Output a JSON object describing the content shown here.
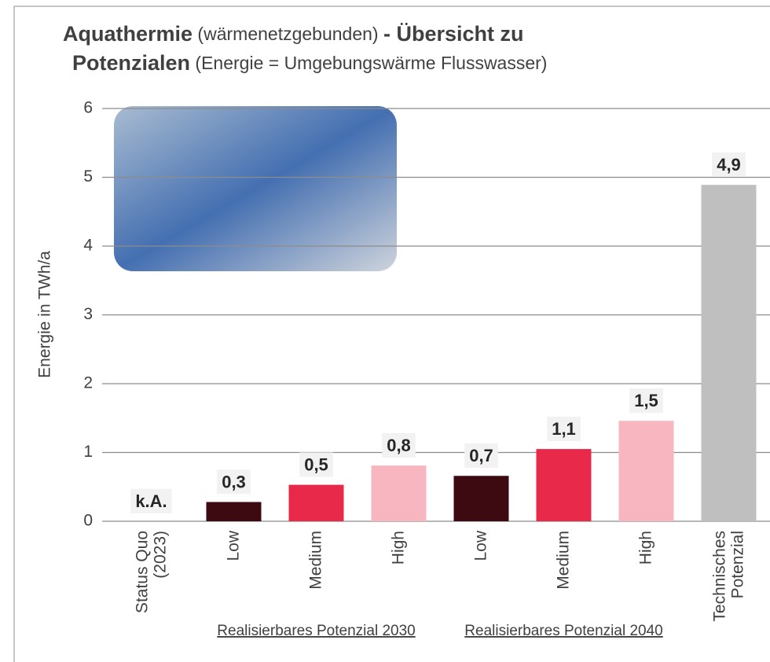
{
  "chart_data": {
    "type": "bar",
    "title_lines": [
      [
        {
          "text": "Aquathermie",
          "bold": true
        },
        {
          "text": " (wärmenetzgebunden) ",
          "bold": false
        },
        {
          "text": "- Übersicht zu",
          "bold": true
        }
      ],
      [
        {
          "text": "Potenzialen",
          "bold": true
        },
        {
          "text": " (Energie = Umgebungswärme Flusswasser)",
          "bold": false
        }
      ]
    ],
    "y_label": "Energie in TWh/a",
    "categories": [
      "Status Quo (2023)",
      "Low",
      "Medium",
      "High",
      "Low",
      "Medium",
      "High",
      "Technisches Potenzial"
    ],
    "values": [
      null,
      0.28,
      0.53,
      0.81,
      0.66,
      1.05,
      1.46,
      4.89
    ],
    "value_labels": [
      "k.A.",
      "0,3",
      "0,5",
      "0,8",
      "0,7",
      "1,1",
      "1,5",
      "4,9"
    ],
    "colors": [
      "#3d0a12",
      "#3d0a12",
      "#e8294a",
      "#f7b6c0",
      "#3d0a12",
      "#e8294a",
      "#f7b6c0",
      "#bfbfbf"
    ],
    "groups": [
      {
        "label": "Realisierbares Potenzial 2030",
        "categories": [
          1,
          2,
          3
        ]
      },
      {
        "label": "Realisierbares Potenzial 2040",
        "categories": [
          4,
          5,
          6
        ]
      }
    ],
    "ylim": [
      0,
      6
    ],
    "yticks": [
      0,
      1,
      2,
      3,
      4,
      5,
      6
    ],
    "grid": true
  }
}
